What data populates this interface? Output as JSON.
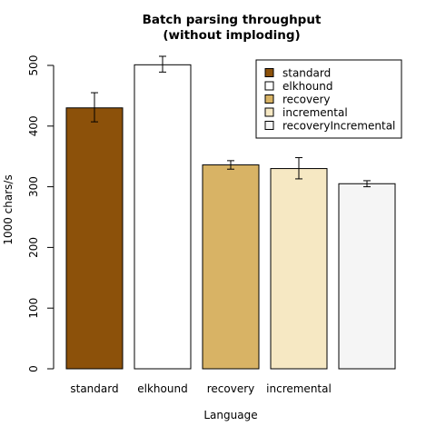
{
  "chart_data": {
    "type": "bar",
    "title": [
      "Batch parsing throughput",
      "(without imploding)"
    ],
    "xlabel": "Language",
    "ylabel": "1000 chars/s",
    "ylim": [
      0,
      500
    ],
    "yticks": [
      0,
      100,
      200,
      300,
      400,
      500
    ],
    "categories": [
      "standard",
      "elkhound",
      "recovery",
      "incremental",
      ""
    ],
    "series": [
      {
        "name": "standard",
        "value": 430,
        "err_low": 407,
        "err_high": 455,
        "color": "#8c510a"
      },
      {
        "name": "elkhound",
        "value": 501,
        "err_low": 489,
        "err_high": 515,
        "color": "#ffffff"
      },
      {
        "name": "recovery",
        "value": 336,
        "err_low": 329,
        "err_high": 343,
        "color": "#d8b365"
      },
      {
        "name": "incremental",
        "value": 330,
        "err_low": 313,
        "err_high": 348,
        "color": "#f6e8c3"
      },
      {
        "name": "recoveryIncremental",
        "value": 305,
        "err_low": 300,
        "err_high": 310,
        "color": "#f5f5f5"
      }
    ],
    "legend_position": "top-right",
    "grid": false
  }
}
